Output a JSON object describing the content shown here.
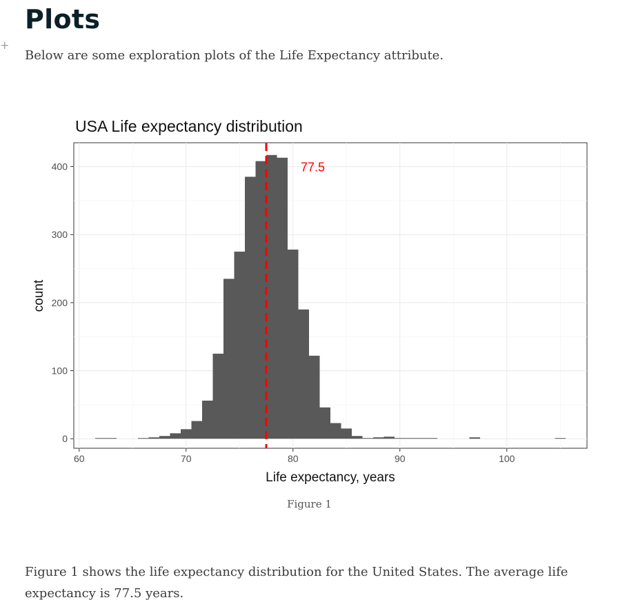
{
  "page": {
    "add_icon": "plus-icon",
    "title": "Plots",
    "intro": "Below are some exploration plots of the Life Expectancy attribute.",
    "caption": "Figure 1",
    "summary": "Figure 1 shows the life expectancy distribution for the United States. The average life expectancy is 77.5 years."
  },
  "chart_data": {
    "type": "bar",
    "title": "USA Life expectancy distribution",
    "xlabel": "Life expectancy, years",
    "ylabel": "count",
    "xlim": [
      59.5,
      107.5
    ],
    "ylim": [
      -14,
      435
    ],
    "x_ticks": [
      60,
      70,
      80,
      90,
      100
    ],
    "y_ticks": [
      0,
      100,
      200,
      300,
      400
    ],
    "bin_width": 1,
    "bar_color": "#595959",
    "grid": true,
    "bins": [
      {
        "x": 62,
        "count": 1
      },
      {
        "x": 63,
        "count": 1
      },
      {
        "x": 66,
        "count": 1
      },
      {
        "x": 67,
        "count": 2
      },
      {
        "x": 68,
        "count": 4
      },
      {
        "x": 69,
        "count": 8
      },
      {
        "x": 70,
        "count": 14
      },
      {
        "x": 71,
        "count": 26
      },
      {
        "x": 72,
        "count": 56
      },
      {
        "x": 73,
        "count": 125
      },
      {
        "x": 74,
        "count": 235
      },
      {
        "x": 75,
        "count": 275
      },
      {
        "x": 76,
        "count": 385
      },
      {
        "x": 77,
        "count": 408
      },
      {
        "x": 78,
        "count": 417
      },
      {
        "x": 79,
        "count": 413
      },
      {
        "x": 80,
        "count": 278
      },
      {
        "x": 81,
        "count": 190
      },
      {
        "x": 82,
        "count": 122
      },
      {
        "x": 83,
        "count": 46
      },
      {
        "x": 84,
        "count": 23
      },
      {
        "x": 85,
        "count": 15
      },
      {
        "x": 86,
        "count": 4
      },
      {
        "x": 87,
        "count": 1
      },
      {
        "x": 88,
        "count": 2
      },
      {
        "x": 89,
        "count": 3
      },
      {
        "x": 90,
        "count": 1
      },
      {
        "x": 91,
        "count": 1
      },
      {
        "x": 92,
        "count": 1
      },
      {
        "x": 93,
        "count": 1
      },
      {
        "x": 97,
        "count": 2
      },
      {
        "x": 105,
        "count": 1
      }
    ],
    "mean_line": {
      "value": 77.5,
      "label": "77.5",
      "color": "#ff0000",
      "style": "dashed"
    }
  }
}
